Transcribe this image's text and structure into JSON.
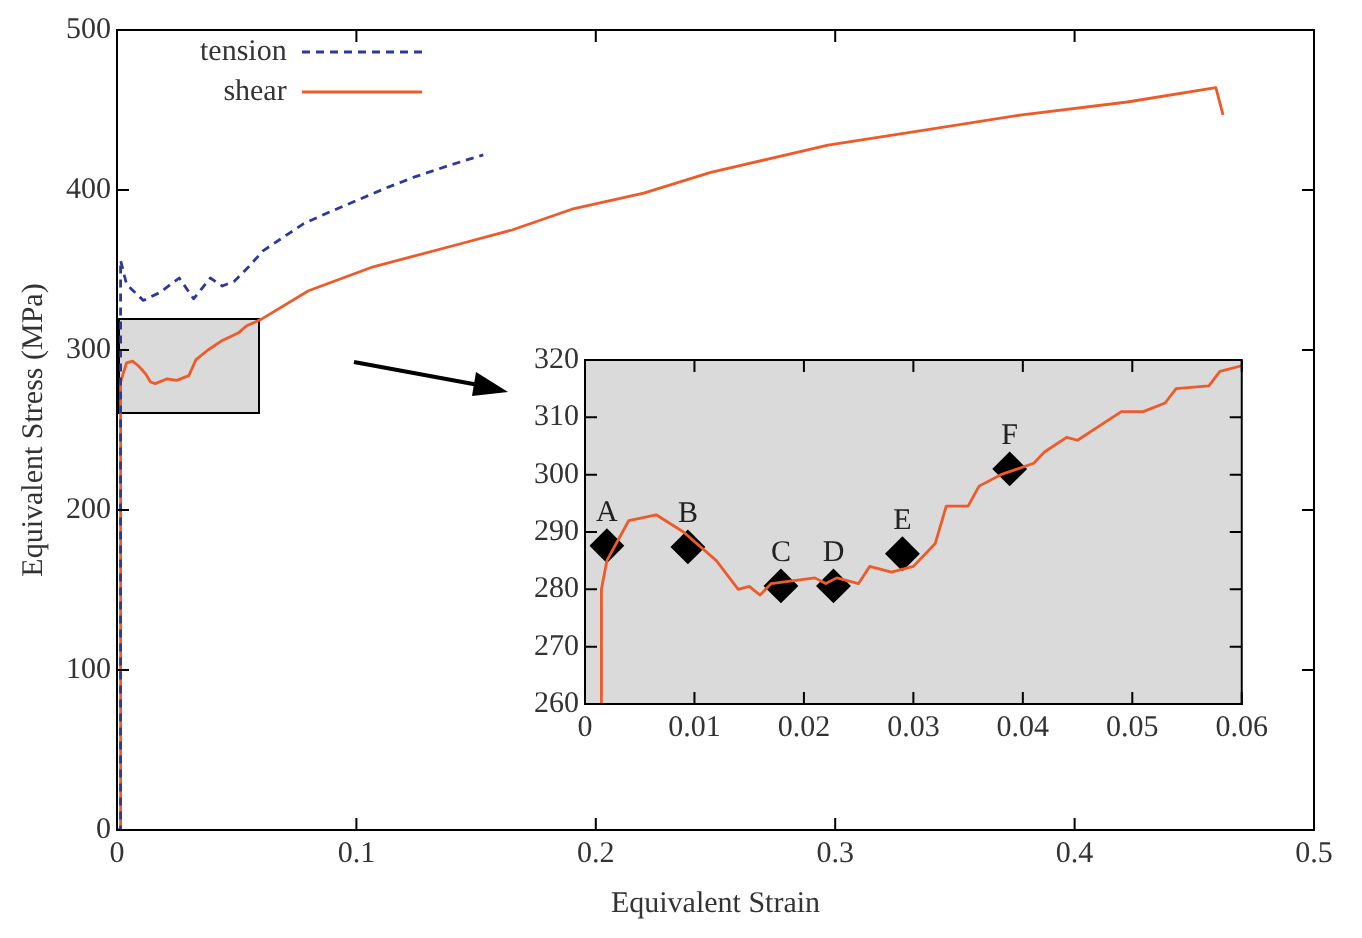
{
  "chart_data": [
    {
      "type": "line",
      "xlabel": "Equivalent Strain",
      "ylabel": "Equivalent Stress (MPa)",
      "xlim": [
        0,
        0.5
      ],
      "xticks": [
        0,
        0.1,
        0.2,
        0.3,
        0.4,
        0.5
      ],
      "ylim": [
        0,
        500
      ],
      "yticks": [
        0,
        100,
        200,
        300,
        400,
        500
      ],
      "legend": "top left",
      "marker": "none",
      "series": [
        {
          "name": "tension",
          "color": "#2b3a9a",
          "line_style": "dashed",
          "x": [
            0,
            0.0015,
            0.0015,
            0.004,
            0.011,
            0.018,
            0.026,
            0.032,
            0.039,
            0.044,
            0.049,
            0.055,
            0.061,
            0.07,
            0.078,
            0.09,
            0.101,
            0.112,
            0.124,
            0.138,
            0.153
          ],
          "values": [
            0,
            0,
            356,
            341,
            331,
            336,
            345,
            332,
            345,
            340,
            343,
            352,
            362,
            371,
            379,
            387,
            394,
            401,
            408,
            415,
            422
          ]
        },
        {
          "name": "shear",
          "color": "#f05a28",
          "line_style": "solid",
          "x": [
            0,
            0.0015,
            0.0015,
            0.004,
            0.0065,
            0.009,
            0.012,
            0.014,
            0.016,
            0.021,
            0.025,
            0.03,
            0.033,
            0.038,
            0.044,
            0.051,
            0.054,
            0.06,
            0.08,
            0.107,
            0.14,
            0.165,
            0.19,
            0.22,
            0.248,
            0.297,
            0.34,
            0.378,
            0.422,
            0.459,
            0.462
          ],
          "values": [
            0,
            0,
            280,
            292,
            293,
            290,
            285,
            280,
            279,
            282,
            281,
            284,
            294,
            300,
            306,
            311,
            315,
            319,
            337,
            352,
            365,
            375,
            388,
            398,
            411,
            428,
            438,
            447,
            455,
            464,
            447
          ]
        }
      ]
    },
    {
      "type": "line",
      "xlim": [
        0,
        0.06
      ],
      "xticks": [
        0,
        0.01,
        0.02,
        0.03,
        0.04,
        0.05,
        0.06
      ],
      "ylim": [
        260,
        320
      ],
      "yticks": [
        260,
        270,
        280,
        290,
        300,
        310,
        320
      ],
      "series": [
        {
          "color": "#f05a28",
          "line_style": "solid",
          "marker": "none",
          "x": [
            0.0015,
            0.0015,
            0.002,
            0.004,
            0.0065,
            0.009,
            0.012,
            0.014,
            0.015,
            0.016,
            0.017,
            0.021,
            0.022,
            0.023,
            0.025,
            0.026,
            0.028,
            0.03,
            0.032,
            0.033,
            0.035,
            0.036,
            0.038,
            0.041,
            0.042,
            0.044,
            0.045,
            0.047,
            0.049,
            0.051,
            0.053,
            0.054,
            0.057,
            0.058,
            0.06
          ],
          "values": [
            260,
            280,
            285,
            292,
            293,
            290,
            285,
            280,
            280.5,
            279,
            281,
            282,
            281,
            282,
            281,
            284,
            283,
            284,
            288,
            294.5,
            294.5,
            298,
            300,
            302,
            304,
            306.5,
            306,
            308.5,
            311,
            311,
            312.5,
            315,
            315.5,
            318,
            319
          ]
        },
        {
          "type": "scatter",
          "color": "#000000",
          "marker": "diamond",
          "x": [
            0.002,
            0.0094,
            0.0179,
            0.0227,
            0.029,
            0.0388
          ],
          "values": [
            287.6,
            287.4,
            280.6,
            280.6,
            286.2,
            301
          ]
        }
      ],
      "annotations": [
        {
          "text": "A",
          "x": 0.002,
          "y": 287.6
        },
        {
          "text": "B",
          "x": 0.0094,
          "y": 287.4
        },
        {
          "text": "C",
          "x": 0.0179,
          "y": 280.6
        },
        {
          "text": "D",
          "x": 0.0227,
          "y": 280.6
        },
        {
          "text": "E",
          "x": 0.029,
          "y": 286.2
        },
        {
          "text": "F",
          "x": 0.0388,
          "y": 301
        }
      ]
    }
  ]
}
